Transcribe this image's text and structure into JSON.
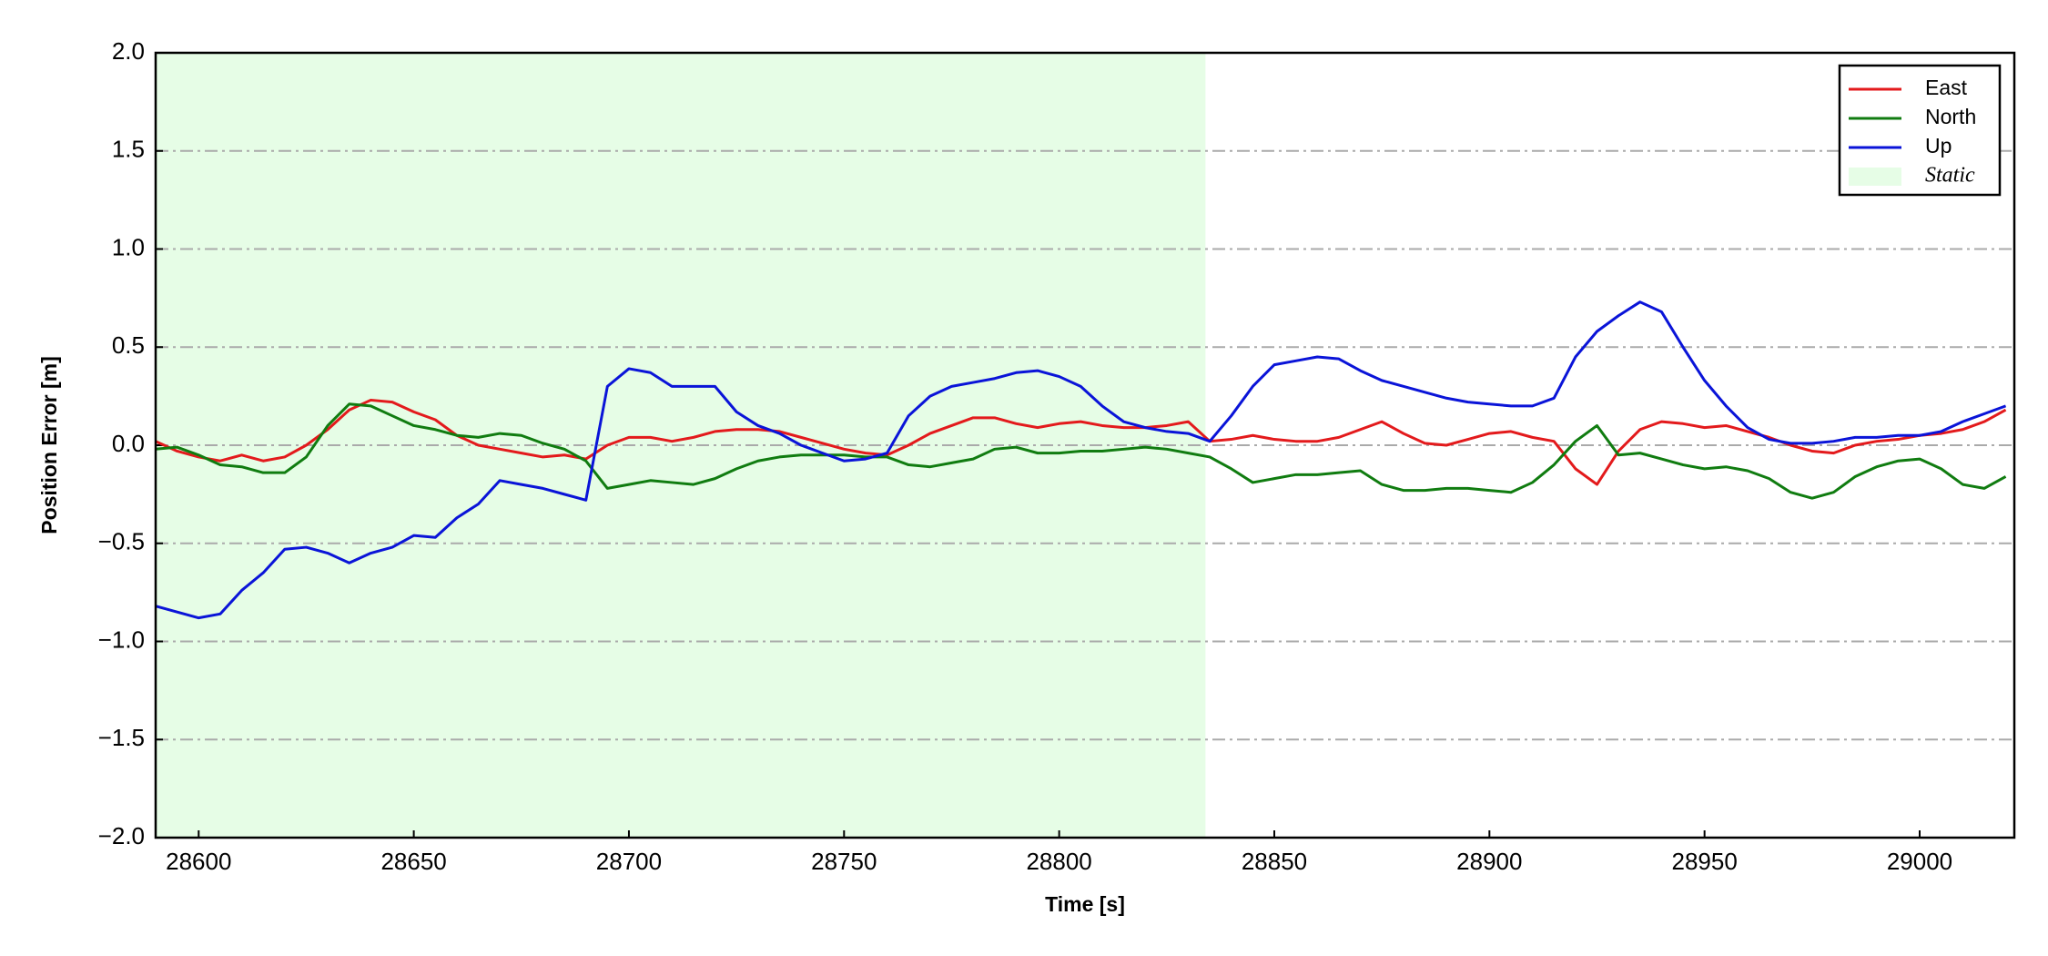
{
  "chart_data": {
    "type": "line",
    "x_label": "Time [s]",
    "y_label": "Position Error [m]",
    "xlim": [
      28590,
      29022
    ],
    "ylim": [
      -2.0,
      2.0
    ],
    "xticks": [
      28600,
      28650,
      28700,
      28750,
      28800,
      28850,
      28900,
      28950,
      29000
    ],
    "yticks": [
      {
        "value": -2.0,
        "label": "−2.0"
      },
      {
        "value": -1.5,
        "label": "−1.5"
      },
      {
        "value": -1.0,
        "label": "−1.0"
      },
      {
        "value": -0.5,
        "label": "−0.5"
      },
      {
        "value": 0.0,
        "label": "0.0"
      },
      {
        "value": 0.5,
        "label": "0.5"
      },
      {
        "value": 1.0,
        "label": "1.0"
      },
      {
        "value": 1.5,
        "label": "1.5"
      },
      {
        "value": 2.0,
        "label": "2.0"
      }
    ],
    "grid": true,
    "legend": "upper right",
    "spans": [
      {
        "name": "Static",
        "start": 28590,
        "end": 28834,
        "color": "#e6fde6"
      }
    ],
    "x": [
      28590,
      28595,
      28600,
      28605,
      28610,
      28615,
      28620,
      28625,
      28630,
      28635,
      28640,
      28645,
      28650,
      28655,
      28660,
      28665,
      28670,
      28675,
      28680,
      28685,
      28690,
      28695,
      28700,
      28705,
      28710,
      28715,
      28720,
      28725,
      28730,
      28735,
      28740,
      28745,
      28750,
      28755,
      28760,
      28765,
      28770,
      28775,
      28780,
      28785,
      28790,
      28795,
      28800,
      28805,
      28810,
      28815,
      28820,
      28825,
      28830,
      28835,
      28840,
      28845,
      28850,
      28855,
      28860,
      28865,
      28870,
      28875,
      28880,
      28885,
      28890,
      28895,
      28900,
      28905,
      28910,
      28915,
      28920,
      28925,
      28930,
      28935,
      28940,
      28945,
      28950,
      28955,
      28960,
      28965,
      28970,
      28975,
      28980,
      28985,
      28990,
      28995,
      29000,
      29005,
      29010,
      29015,
      29020
    ],
    "series": [
      {
        "name": "East",
        "color": "#e31a1c",
        "values": [
          0.02,
          -0.03,
          -0.06,
          -0.08,
          -0.05,
          -0.08,
          -0.06,
          0.0,
          0.08,
          0.18,
          0.23,
          0.22,
          0.17,
          0.13,
          0.05,
          0.0,
          -0.02,
          -0.04,
          -0.06,
          -0.05,
          -0.07,
          0.0,
          0.04,
          0.04,
          0.02,
          0.04,
          0.07,
          0.08,
          0.08,
          0.07,
          0.04,
          0.01,
          -0.02,
          -0.04,
          -0.05,
          0.0,
          0.06,
          0.1,
          0.14,
          0.14,
          0.11,
          0.09,
          0.11,
          0.12,
          0.1,
          0.09,
          0.09,
          0.1,
          0.12,
          0.02,
          0.03,
          0.05,
          0.03,
          0.02,
          0.02,
          0.04,
          0.08,
          0.12,
          0.06,
          0.01,
          0.0,
          0.03,
          0.06,
          0.07,
          0.04,
          0.02,
          -0.12,
          -0.2,
          -0.03,
          0.08,
          0.12,
          0.11,
          0.09,
          0.1,
          0.07,
          0.04,
          0.0,
          -0.03,
          -0.04,
          0.0,
          0.02,
          0.03,
          0.05,
          0.06,
          0.08,
          0.12,
          0.18
        ]
      },
      {
        "name": "North",
        "color": "#107c10",
        "values": [
          -0.02,
          -0.01,
          -0.05,
          -0.1,
          -0.11,
          -0.14,
          -0.14,
          -0.06,
          0.1,
          0.21,
          0.2,
          0.15,
          0.1,
          0.08,
          0.05,
          0.04,
          0.06,
          0.05,
          0.01,
          -0.02,
          -0.08,
          -0.22,
          -0.2,
          -0.18,
          -0.19,
          -0.2,
          -0.17,
          -0.12,
          -0.08,
          -0.06,
          -0.05,
          -0.05,
          -0.05,
          -0.06,
          -0.06,
          -0.1,
          -0.11,
          -0.09,
          -0.07,
          -0.02,
          -0.01,
          -0.04,
          -0.04,
          -0.03,
          -0.03,
          -0.02,
          -0.01,
          -0.02,
          -0.04,
          -0.06,
          -0.12,
          -0.19,
          -0.17,
          -0.15,
          -0.15,
          -0.14,
          -0.13,
          -0.2,
          -0.23,
          -0.23,
          -0.22,
          -0.22,
          -0.23,
          -0.24,
          -0.19,
          -0.1,
          0.02,
          0.1,
          -0.05,
          -0.04,
          -0.07,
          -0.1,
          -0.12,
          -0.11,
          -0.13,
          -0.17,
          -0.24,
          -0.27,
          -0.24,
          -0.16,
          -0.11,
          -0.08,
          -0.07,
          -0.12,
          -0.2,
          -0.22,
          -0.16
        ]
      },
      {
        "name": "Up",
        "color": "#0a14d8",
        "values": [
          -0.82,
          -0.85,
          -0.88,
          -0.86,
          -0.74,
          -0.65,
          -0.53,
          -0.52,
          -0.55,
          -0.6,
          -0.55,
          -0.52,
          -0.46,
          -0.47,
          -0.37,
          -0.3,
          -0.18,
          -0.2,
          -0.22,
          -0.25,
          -0.28,
          0.3,
          0.39,
          0.37,
          0.3,
          0.3,
          0.3,
          0.17,
          0.1,
          0.06,
          0.0,
          -0.04,
          -0.08,
          -0.07,
          -0.04,
          0.15,
          0.25,
          0.3,
          0.32,
          0.34,
          0.37,
          0.38,
          0.35,
          0.3,
          0.2,
          0.12,
          0.09,
          0.07,
          0.06,
          0.02,
          0.15,
          0.3,
          0.41,
          0.43,
          0.45,
          0.44,
          0.38,
          0.33,
          0.3,
          0.27,
          0.24,
          0.22,
          0.21,
          0.2,
          0.2,
          0.24,
          0.45,
          0.58,
          0.66,
          0.73,
          0.68,
          0.5,
          0.33,
          0.2,
          0.09,
          0.03,
          0.01,
          0.01,
          0.02,
          0.04,
          0.04,
          0.05,
          0.05,
          0.07,
          0.12,
          0.16,
          0.2
        ]
      }
    ]
  }
}
